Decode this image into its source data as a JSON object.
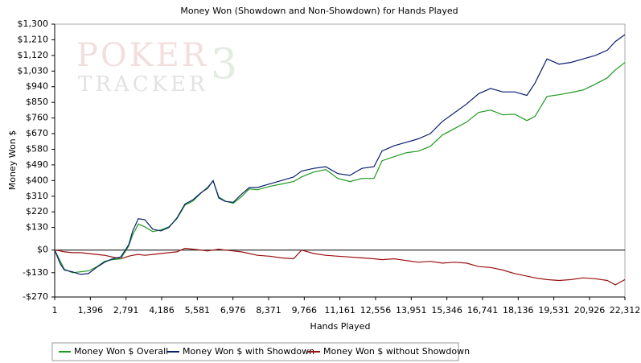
{
  "chart_data": {
    "type": "line",
    "title": "Money Won (Showdown and Non-Showdown) for Hands Played",
    "xlabel": "Hands Played",
    "ylabel": "Money Won $",
    "watermark": {
      "line1": "POKER",
      "line2": "TRACKER",
      "mark": "3"
    },
    "x": [
      1,
      221,
      379,
      693,
      1008,
      1323,
      1637,
      1952,
      2267,
      2582,
      2896,
      3054,
      3274,
      3526,
      3840,
      4155,
      4470,
      4785,
      5099,
      5414,
      5729,
      5981,
      6201,
      6421,
      6673,
      6988,
      7303,
      7617,
      7932,
      8404,
      8876,
      9348,
      9663,
      10135,
      10607,
      11079,
      11550,
      12023,
      12495,
      12810,
      13282,
      13754,
      14226,
      14698,
      15170,
      15642,
      16114,
      16587,
      17058,
      17531,
      18003,
      18475,
      18790,
      19262,
      19734,
      20206,
      20678,
      21150,
      21622,
      21937,
      22312
    ],
    "series": [
      {
        "name": "Money Won $ Overall",
        "color": "#1e9a1e",
        "values": [
          0,
          -65,
          -110,
          -130,
          -125,
          -120,
          -97,
          -65,
          -55,
          -50,
          23,
          88,
          150,
          134,
          106,
          116,
          134,
          180,
          259,
          282,
          329,
          361,
          398,
          306,
          282,
          269,
          306,
          352,
          347,
          366,
          380,
          394,
          421,
          449,
          463,
          412,
          394,
          412,
          412,
          514,
          537,
          560,
          569,
          597,
          662,
          699,
          736,
          792,
          806,
          778,
          782,
          745,
          769,
          884,
          894,
          907,
          921,
          954,
          991,
          1037,
          1079
        ]
      },
      {
        "name": "Money Won $ with Showdown",
        "color": "#0a1f6e",
        "values": [
          0,
          -80,
          -115,
          -125,
          -140,
          -135,
          -100,
          -70,
          -50,
          -40,
          30,
          110,
          180,
          175,
          120,
          110,
          130,
          185,
          265,
          290,
          330,
          355,
          400,
          300,
          280,
          275,
          320,
          360,
          360,
          380,
          400,
          420,
          455,
          470,
          480,
          440,
          430,
          470,
          480,
          570,
          600,
          620,
          640,
          670,
          740,
          790,
          840,
          900,
          930,
          910,
          910,
          890,
          960,
          1100,
          1070,
          1080,
          1100,
          1120,
          1150,
          1200,
          1240
        ]
      },
      {
        "name": "Money Won $ without Showdown",
        "color": "#9a1010",
        "values": [
          0,
          -5,
          -10,
          -15,
          -15,
          -20,
          -25,
          -30,
          -40,
          -50,
          -35,
          -30,
          -25,
          -30,
          -25,
          -20,
          -15,
          -10,
          10,
          5,
          0,
          -5,
          0,
          5,
          0,
          -5,
          -10,
          -20,
          -30,
          -35,
          -45,
          -50,
          0,
          -20,
          -30,
          -35,
          -40,
          -45,
          -50,
          -55,
          -50,
          -60,
          -70,
          -65,
          -75,
          -70,
          -75,
          -95,
          -100,
          -115,
          -135,
          -150,
          -160,
          -170,
          -175,
          -170,
          -160,
          -165,
          -175,
          -200,
          -170
        ]
      }
    ],
    "xlim": [
      1,
      22312
    ],
    "xticks": [
      1,
      {
        "value": 1396,
        "label": "1,396"
      },
      {
        "value": 2791,
        "label": "2,791"
      },
      {
        "value": 4186,
        "label": "4,186"
      },
      {
        "value": 5581,
        "label": "5,581"
      },
      {
        "value": 6976,
        "label": "6,976"
      },
      {
        "value": 8371,
        "label": "8,371"
      },
      {
        "value": 9766,
        "label": "9,766"
      },
      {
        "value": 11161,
        "label": "11,161"
      },
      {
        "value": 12556,
        "label": "12,556"
      },
      {
        "value": 13951,
        "label": "13,951"
      },
      {
        "value": 15346,
        "label": "15,346"
      },
      {
        "value": 16741,
        "label": "16,741"
      },
      {
        "value": 18136,
        "label": "18,136"
      },
      {
        "value": 19531,
        "label": "19,531"
      },
      {
        "value": 20926,
        "label": "20,926"
      },
      {
        "value": 22312,
        "label": "22,312"
      }
    ],
    "ylim": [
      -270,
      1300
    ],
    "yticks": [
      {
        "value": -270,
        "label": "-$270"
      },
      {
        "value": -130,
        "label": "-$130"
      },
      {
        "value": 0,
        "label": "$0"
      },
      {
        "value": 130,
        "label": "$130"
      },
      {
        "value": 220,
        "label": "$220"
      },
      {
        "value": 310,
        "label": "$310"
      },
      {
        "value": 400,
        "label": "$400"
      },
      {
        "value": 490,
        "label": "$490"
      },
      {
        "value": 580,
        "label": "$580"
      },
      {
        "value": 670,
        "label": "$670"
      },
      {
        "value": 760,
        "label": "$760"
      },
      {
        "value": 850,
        "label": "$850"
      },
      {
        "value": 940,
        "label": "$940"
      },
      {
        "value": 1030,
        "label": "$1,030"
      },
      {
        "value": 1120,
        "label": "$1,120"
      },
      {
        "value": 1210,
        "label": "$1,210"
      },
      {
        "value": 1300,
        "label": "$1,300"
      }
    ],
    "legend": "bottom-left"
  }
}
